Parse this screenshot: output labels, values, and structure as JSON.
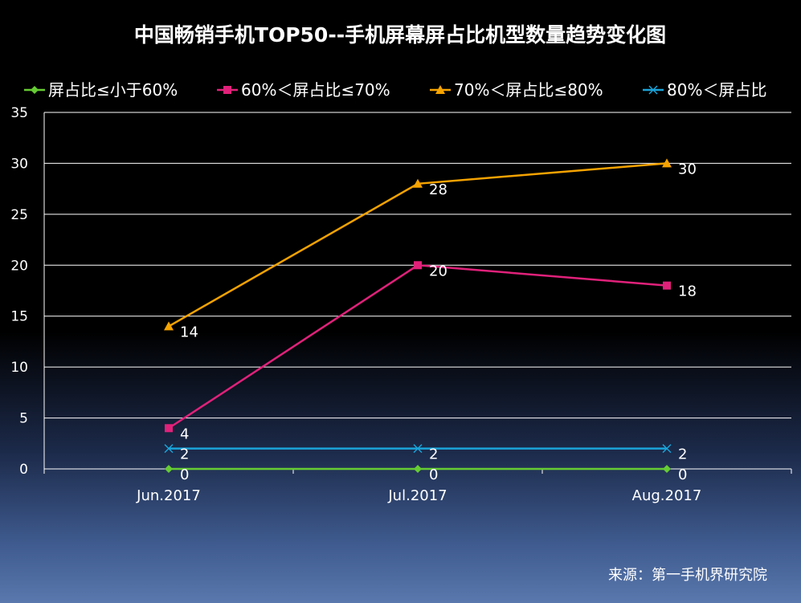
{
  "chart_data": {
    "type": "line",
    "title": "中国畅销手机TOP50--手机屏幕屏占比机型数量趋势变化图",
    "categories": [
      "Jun.2017",
      "Jul.2017",
      "Aug.2017"
    ],
    "ylim": [
      0,
      35
    ],
    "yticks": [
      0,
      5,
      10,
      15,
      20,
      25,
      30,
      35
    ],
    "grid": true,
    "legend_position": "top",
    "series": [
      {
        "name": "屏占比≤小于60%",
        "values": [
          0,
          0,
          0
        ],
        "color": "#66cc33",
        "marker": "diamond"
      },
      {
        "name": "60%＜屏占比≤70%",
        "values": [
          4,
          20,
          18
        ],
        "color": "#e0217a",
        "marker": "square"
      },
      {
        "name": "70%＜屏占比≤80%",
        "values": [
          14,
          28,
          30
        ],
        "color": "#f5a300",
        "marker": "triangle"
      },
      {
        "name": "80%＜屏占比",
        "values": [
          2,
          2,
          2
        ],
        "color": "#1aa3d9",
        "marker": "x"
      }
    ]
  },
  "source": "来源：第一手机界研究院"
}
